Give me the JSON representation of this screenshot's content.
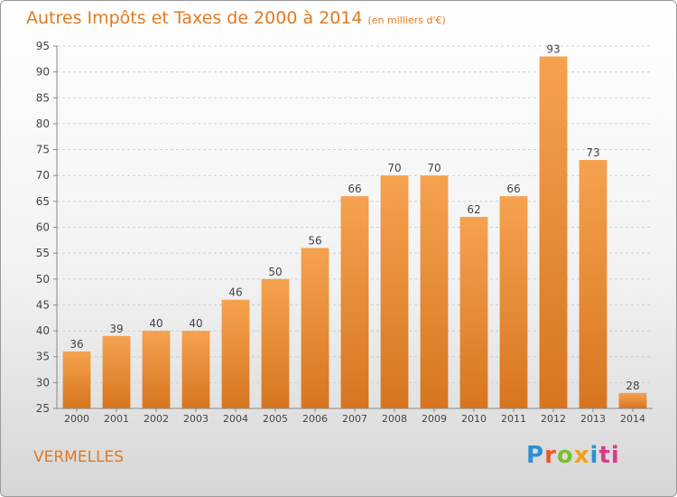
{
  "chart_data": {
    "type": "bar",
    "title": "Autres Impôts et Taxes de 2000 à 2014",
    "subtitle": "(en milliers d'€)",
    "categories": [
      "2000",
      "2001",
      "2002",
      "2003",
      "2004",
      "2005",
      "2006",
      "2007",
      "2008",
      "2009",
      "2010",
      "2011",
      "2012",
      "2013",
      "2014"
    ],
    "values": [
      36,
      39,
      40,
      40,
      46,
      50,
      56,
      66,
      70,
      70,
      62,
      66,
      93,
      73,
      28
    ],
    "ylim": [
      25,
      95
    ],
    "yticks": [
      25,
      30,
      35,
      40,
      45,
      50,
      55,
      60,
      65,
      70,
      75,
      80,
      85,
      90,
      95
    ],
    "grid": true,
    "bar_color": "#f0923a"
  },
  "commune": "VERMELLES",
  "logo": {
    "letters": [
      "P",
      "r",
      "o",
      "x",
      "i",
      "ti"
    ]
  }
}
